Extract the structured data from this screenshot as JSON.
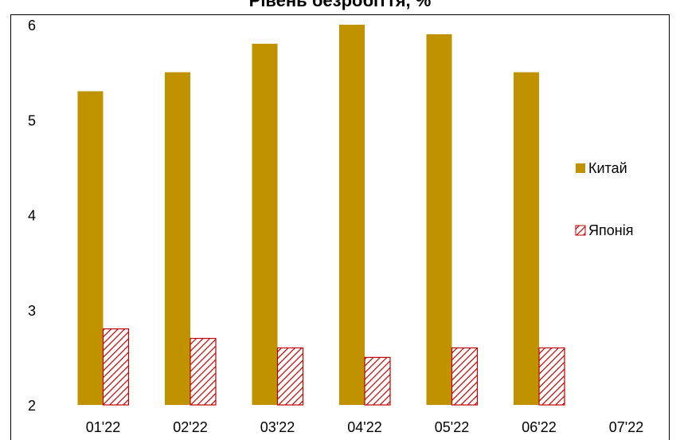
{
  "chart_data": {
    "type": "bar",
    "title": "Рівень безробіття, %",
    "categories": [
      "01'22",
      "02'22",
      "03'22",
      "04'22",
      "05'22",
      "06'22",
      "07'22"
    ],
    "series": [
      {
        "name": "Китай",
        "values": [
          5.3,
          5.5,
          5.8,
          6.0,
          5.9,
          5.5,
          null
        ],
        "color": "#C09200",
        "pattern": "solid"
      },
      {
        "name": "Японія",
        "values": [
          2.8,
          2.7,
          2.6,
          2.5,
          2.6,
          2.6,
          null
        ],
        "color": "#C00000",
        "pattern": "diagonal-hatch"
      }
    ],
    "ylim": [
      2,
      6
    ],
    "yticks": [
      2,
      3,
      4,
      5,
      6
    ],
    "xlabel": "",
    "ylabel": "",
    "grid": false,
    "legend": "right"
  }
}
